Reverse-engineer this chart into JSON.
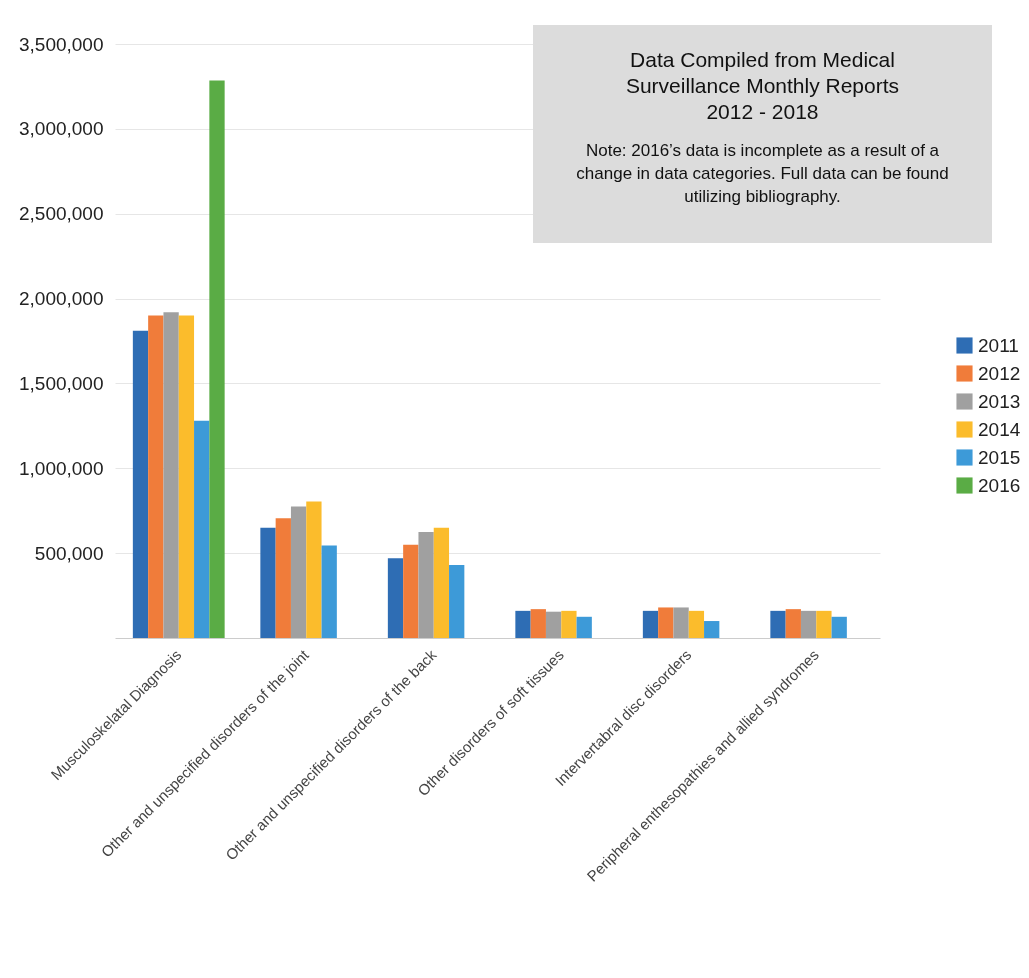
{
  "chart_data": {
    "type": "bar",
    "categories": [
      "Musculoskelatal Diagnosis",
      "Other and unspecified disorders of the joint",
      "Other and unspecified disorders of the back",
      "Other disorders of soft tissues",
      "Intervertabral disc disorders",
      "Peripheral enthesopathies and allied syndromes"
    ],
    "series": [
      {
        "name": "2011",
        "color": "#2e6db4",
        "values": [
          1810000,
          650000,
          470000,
          160000,
          160000,
          160000
        ]
      },
      {
        "name": "2012",
        "color": "#f07c3a",
        "values": [
          1900000,
          705000,
          550000,
          170000,
          180000,
          170000
        ]
      },
      {
        "name": "2013",
        "color": "#a0a0a0",
        "values": [
          1920000,
          775000,
          625000,
          155000,
          180000,
          160000
        ]
      },
      {
        "name": "2014",
        "color": "#fbbc2c",
        "values": [
          1900000,
          805000,
          650000,
          160000,
          160000,
          160000
        ]
      },
      {
        "name": "2015",
        "color": "#3d9ad8",
        "values": [
          1280000,
          545000,
          430000,
          125000,
          100000,
          125000
        ]
      },
      {
        "name": "2016",
        "color": "#5aac45",
        "values": [
          3285000,
          null,
          null,
          null,
          null,
          null
        ]
      }
    ],
    "ylim": [
      0,
      3500000
    ],
    "yticks": [
      {
        "value": 500000,
        "label": "500,000"
      },
      {
        "value": 1000000,
        "label": "1,000,000"
      },
      {
        "value": 1500000,
        "label": "1,500,000"
      },
      {
        "value": 2000000,
        "label": "2,000,000"
      },
      {
        "value": 2500000,
        "label": "2,500,000"
      },
      {
        "value": 3000000,
        "label": "3,000,000"
      },
      {
        "value": 3500000,
        "label": "3,500,000"
      }
    ],
    "grid": "y",
    "legend": "right",
    "annotations": [
      "Data Compiled from Medical Surveillance Monthly Reports 2012 - 2018",
      "Note: 2016’s data is incomplete as a result of a change in data categories. Full data can be found utilizing bibliography."
    ]
  }
}
